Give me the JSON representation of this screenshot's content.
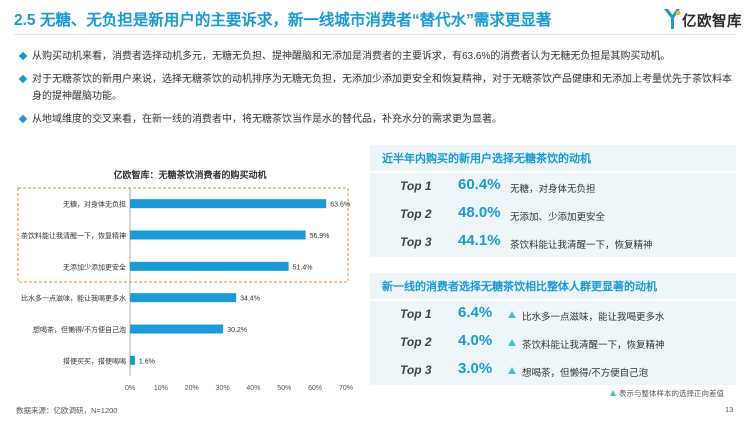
{
  "header": {
    "title": "2.5 无糖、无负担是新用户的主要诉求，新一线城市消费者“替代水”需求更显著",
    "logo_text": "亿欧智库"
  },
  "bullets": [
    "从购买动机来看，消费者选择动机多元，无糖无负担、提神醒脑和无添加是消费者的主要诉求，有63.6%的消费者认为无糖无负担是其购买动机。",
    "对于无糖茶饮的新用户来说，选择无糖茶饮的动机排序为无糖无负担，无添加少添加更安全和恢复精神，对于无糖茶饮产品健康和无添加上考量优先于茶饮料本身的提神醒脑功能。",
    "从地域维度的交叉来看，在新一线的消费者中，将无糖茶饮当作是水的替代品，补充水分的需求更为显著。"
  ],
  "chart_data": {
    "type": "bar",
    "orientation": "horizontal",
    "title": "亿欧智库：无糖茶饮消费者的购买动机",
    "categories": [
      "无糖，对身体无负担",
      "茶饮料能让我清醒一下，恢复精神",
      "无添加少添加更安全",
      "比水多一点滋味，能让我喝更多水",
      "想喝茶，但懒得/不方便自己泡",
      "搭便买买，搭便喝喝"
    ],
    "values": [
      63.6,
      56.9,
      51.4,
      34.4,
      30.2,
      1.6
    ],
    "value_labels": [
      "63.6%",
      "56.9%",
      "51.4%",
      "34.4%",
      "30.2%",
      "1.6%"
    ],
    "xlim": [
      0,
      70
    ],
    "x_ticks": [
      0,
      10,
      20,
      30,
      40,
      50,
      60,
      70
    ],
    "x_tick_labels": [
      "0%",
      "10%",
      "20%",
      "30%",
      "40%",
      "50%",
      "60%",
      "70%"
    ],
    "highlighted_top": 3,
    "colors": {
      "bar": "#1a9ad6",
      "highlight_border": "#e8893a",
      "axis": "#999999"
    }
  },
  "card_new_users": {
    "title": "近半年内购买的新用户选择无糖茶饮的动机",
    "rows": [
      {
        "rank": "Top 1",
        "pct": "60.4%",
        "reason": "无糖，对身体无负担"
      },
      {
        "rank": "Top 2",
        "pct": "48.0%",
        "reason": "无添加、少添加更安全"
      },
      {
        "rank": "Top 3",
        "pct": "44.1%",
        "reason": "茶饮料能让我清醒一下，恢复精神"
      }
    ]
  },
  "card_new_tier1": {
    "title": "新一线的消费者选择无糖茶饮相比整体人群更显著的动机",
    "rows": [
      {
        "rank": "Top 1",
        "pct": "6.4%",
        "reason": "比水多一点滋味，能让我喝更多水"
      },
      {
        "rank": "Top 2",
        "pct": "4.0%",
        "reason": "茶饮料能让我清醒一下，恢复精神"
      },
      {
        "rank": "Top 3",
        "pct": "3.0%",
        "reason": "想喝茶，但懒得/不方便自己泡"
      }
    ]
  },
  "footer": {
    "note": "表示与整体样本的选择正向差值",
    "source": "数据来源：亿欧调研，N=1200",
    "page": "13"
  },
  "colors": {
    "accent": "#1a9ad6",
    "teal": "#3cc6c4",
    "card_bg": "#eef6fa"
  }
}
